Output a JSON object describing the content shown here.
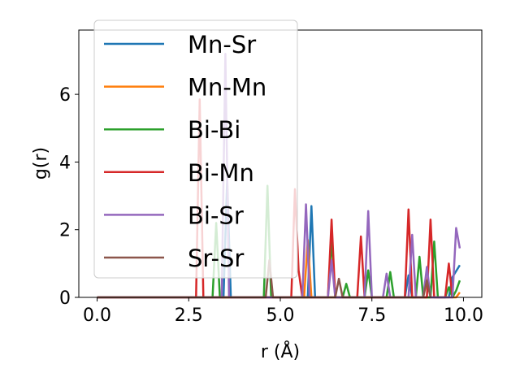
{
  "chart_data": {
    "type": "line",
    "xlabel": "r (Å)",
    "ylabel": "g(r)",
    "xlim": [
      -0.5,
      10.5
    ],
    "ylim": [
      0,
      7.9
    ],
    "xticks": [
      0.0,
      2.5,
      5.0,
      7.5,
      10.0
    ],
    "xtick_labels": [
      "0.0",
      "2.5",
      "5.0",
      "7.5",
      "10.0"
    ],
    "yticks": [
      0,
      2,
      4,
      6
    ],
    "ytick_labels": [
      "0",
      "2",
      "4",
      "6"
    ],
    "grid": false,
    "legend_position": "upper-left",
    "series": [
      {
        "name": "Mn-Sr",
        "color": "#1f77b4",
        "points": [
          [
            0,
            0
          ],
          [
            3.45,
            0
          ],
          [
            3.55,
            3.5
          ],
          [
            3.65,
            0
          ],
          [
            5.75,
            0
          ],
          [
            5.85,
            2.7
          ],
          [
            5.95,
            0
          ],
          [
            8.4,
            0
          ],
          [
            8.5,
            0.65
          ],
          [
            8.6,
            0
          ],
          [
            9.6,
            0
          ],
          [
            9.7,
            0.6
          ],
          [
            9.9,
            0.95
          ]
        ]
      },
      {
        "name": "Mn-Mn",
        "color": "#ff7f0e",
        "points": [
          [
            0,
            0
          ],
          [
            5.65,
            0
          ],
          [
            5.75,
            1.7
          ],
          [
            5.85,
            0
          ],
          [
            9.8,
            0
          ],
          [
            9.9,
            0.15
          ]
        ]
      },
      {
        "name": "Bi-Bi",
        "color": "#2ca02c",
        "points": [
          [
            0,
            0
          ],
          [
            3.15,
            0
          ],
          [
            3.25,
            2.2
          ],
          [
            3.35,
            0
          ],
          [
            4.55,
            0
          ],
          [
            4.65,
            3.3
          ],
          [
            4.75,
            0
          ],
          [
            6.3,
            0
          ],
          [
            6.4,
            1.7
          ],
          [
            6.5,
            0
          ],
          [
            6.7,
            0
          ],
          [
            6.8,
            0.4
          ],
          [
            6.9,
            0
          ],
          [
            7.3,
            0
          ],
          [
            7.4,
            0.8
          ],
          [
            7.5,
            0
          ],
          [
            7.9,
            0
          ],
          [
            8.0,
            0.75
          ],
          [
            8.1,
            0
          ],
          [
            8.7,
            0
          ],
          [
            8.8,
            1.2
          ],
          [
            8.9,
            0
          ],
          [
            9.1,
            0
          ],
          [
            9.2,
            1.65
          ],
          [
            9.3,
            0
          ],
          [
            9.5,
            0
          ],
          [
            9.6,
            0.3
          ],
          [
            9.7,
            0
          ],
          [
            9.8,
            0.2
          ],
          [
            9.9,
            0.5
          ]
        ]
      },
      {
        "name": "Bi-Mn",
        "color": "#d62728",
        "points": [
          [
            0,
            0
          ],
          [
            2.7,
            0
          ],
          [
            2.8,
            5.85
          ],
          [
            2.9,
            0
          ],
          [
            5.3,
            0
          ],
          [
            5.4,
            3.2
          ],
          [
            5.5,
            0.8
          ],
          [
            5.6,
            0
          ],
          [
            6.3,
            0
          ],
          [
            6.4,
            2.3
          ],
          [
            6.5,
            0
          ],
          [
            7.1,
            0
          ],
          [
            7.2,
            1.8
          ],
          [
            7.3,
            0
          ],
          [
            8.4,
            0
          ],
          [
            8.5,
            2.6
          ],
          [
            8.6,
            0
          ],
          [
            9.0,
            0
          ],
          [
            9.1,
            2.3
          ],
          [
            9.2,
            0
          ],
          [
            9.5,
            0
          ],
          [
            9.6,
            1.0
          ],
          [
            9.7,
            0
          ]
        ]
      },
      {
        "name": "Bi-Sr",
        "color": "#9467bd",
        "points": [
          [
            0,
            0
          ],
          [
            3.4,
            0
          ],
          [
            3.5,
            7.2
          ],
          [
            3.6,
            0
          ],
          [
            5.6,
            0
          ],
          [
            5.7,
            2.75
          ],
          [
            5.8,
            0
          ],
          [
            6.3,
            0
          ],
          [
            6.4,
            1.1
          ],
          [
            6.5,
            0
          ],
          [
            7.3,
            0
          ],
          [
            7.4,
            2.55
          ],
          [
            7.5,
            0
          ],
          [
            7.8,
            0
          ],
          [
            7.9,
            0.7
          ],
          [
            8.0,
            0
          ],
          [
            8.5,
            0
          ],
          [
            8.6,
            1.85
          ],
          [
            8.7,
            0
          ],
          [
            8.9,
            0
          ],
          [
            9.0,
            0.9
          ],
          [
            9.1,
            0
          ],
          [
            9.7,
            0
          ],
          [
            9.8,
            2.05
          ],
          [
            9.9,
            1.45
          ]
        ]
      },
      {
        "name": "Sr-Sr",
        "color": "#8c564b",
        "points": [
          [
            0,
            0
          ],
          [
            4.6,
            0
          ],
          [
            4.7,
            1.1
          ],
          [
            4.8,
            0
          ],
          [
            6.5,
            0
          ],
          [
            6.6,
            0.55
          ],
          [
            6.7,
            0
          ],
          [
            8.9,
            0
          ],
          [
            9.0,
            0.5
          ],
          [
            9.1,
            0
          ]
        ]
      }
    ]
  }
}
